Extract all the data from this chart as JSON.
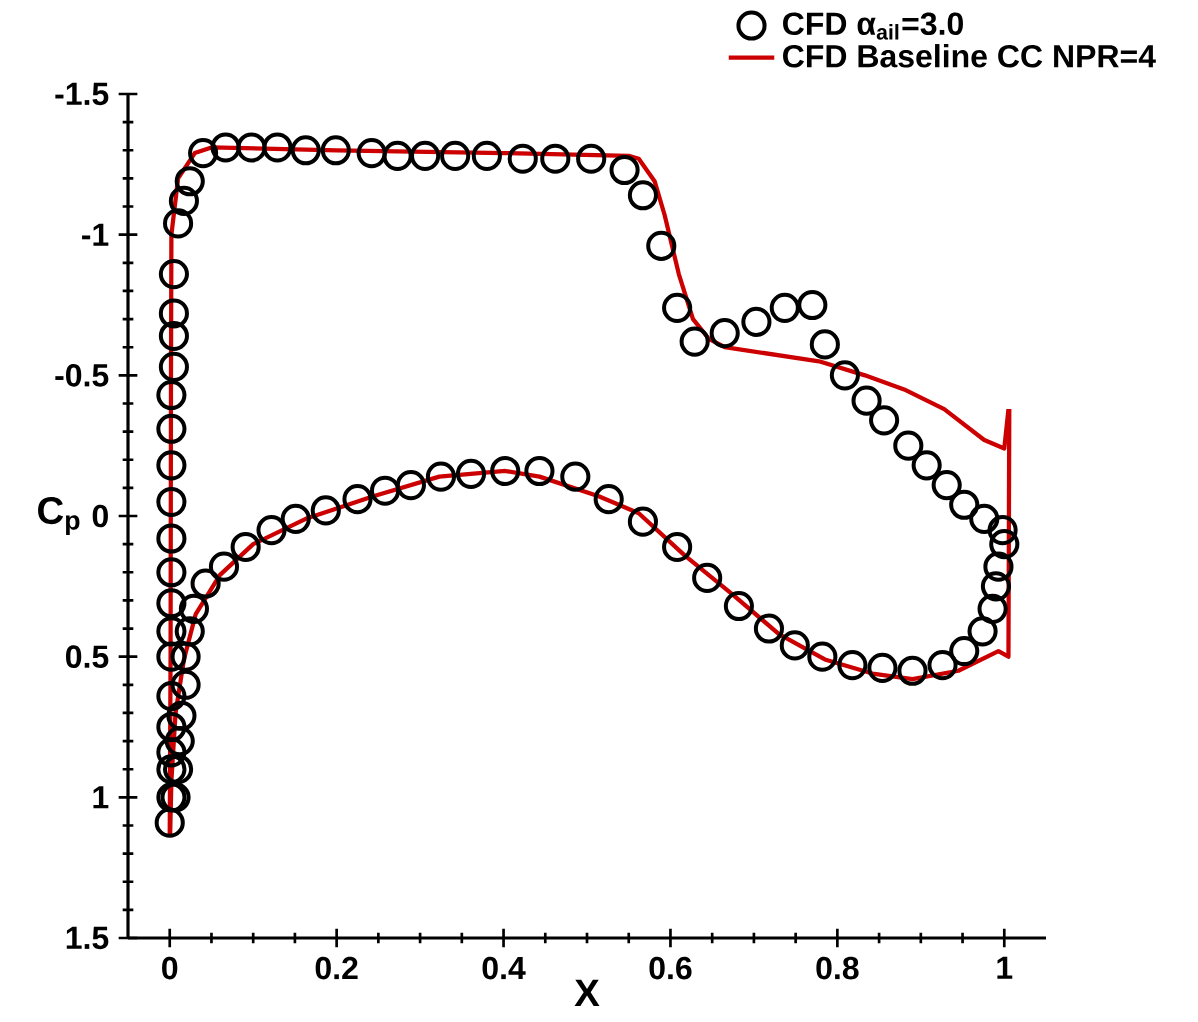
{
  "chart_data": {
    "type": "scatter",
    "xlabel": "X",
    "ylabel": "C$_{p}$",
    "xlim": [
      -0.05,
      1.05
    ],
    "ylim": [
      1.5,
      -1.5
    ],
    "xticks": [
      0,
      0.2,
      0.4,
      0.6,
      0.8,
      1
    ],
    "yticks": [
      -1.5,
      -1,
      -0.5,
      0,
      0.5,
      1,
      1.5
    ],
    "legend": "top right",
    "series": [
      {
        "name": "CFD α$_{ail}$=3.0",
        "marker": "circle",
        "color": "#000000",
        "x": [
          0.0,
          0.002,
          0.002,
          0.002,
          0.002,
          0.002,
          0.002,
          0.002,
          0.002,
          0.002,
          0.002,
          0.002,
          0.002,
          0.002,
          0.002,
          0.005,
          0.005,
          0.005,
          0.005,
          0.01,
          0.017,
          0.024,
          0.04,
          0.067,
          0.098,
          0.129,
          0.163,
          0.199,
          0.242,
          0.273,
          0.306,
          0.342,
          0.38,
          0.423,
          0.462,
          0.505,
          0.545,
          0.567,
          0.589,
          0.608,
          0.629,
          0.665,
          0.703,
          0.737,
          0.77,
          0.785,
          0.809,
          0.835,
          0.856,
          0.885,
          0.907,
          0.931,
          0.952,
          0.976,
          0.998,
          1.0,
          0.993,
          0.99,
          0.986,
          0.974,
          0.952,
          0.926,
          0.89,
          0.854,
          0.818,
          0.782,
          0.749,
          0.718,
          0.682,
          0.644,
          0.608,
          0.567,
          0.526,
          0.486,
          0.443,
          0.402,
          0.361,
          0.325,
          0.289,
          0.258,
          0.225,
          0.187,
          0.151,
          0.122,
          0.091,
          0.065,
          0.043,
          0.029,
          0.024,
          0.019,
          0.019,
          0.014,
          0.012,
          0.01,
          0.007
        ],
        "values": [
          1.09,
          1.0,
          0.9,
          0.84,
          0.75,
          0.64,
          0.5,
          0.41,
          0.31,
          0.2,
          0.08,
          -0.05,
          -0.18,
          -0.31,
          -0.43,
          -0.53,
          -0.64,
          -0.72,
          -0.86,
          -1.04,
          -1.12,
          -1.19,
          -1.29,
          -1.31,
          -1.31,
          -1.31,
          -1.3,
          -1.3,
          -1.29,
          -1.28,
          -1.28,
          -1.28,
          -1.28,
          -1.27,
          -1.27,
          -1.27,
          -1.23,
          -1.14,
          -0.96,
          -0.74,
          -0.62,
          -0.65,
          -0.69,
          -0.74,
          -0.75,
          -0.61,
          -0.5,
          -0.41,
          -0.34,
          -0.25,
          -0.18,
          -0.11,
          -0.04,
          0.01,
          0.05,
          0.1,
          0.18,
          0.25,
          0.33,
          0.41,
          0.48,
          0.53,
          0.55,
          0.54,
          0.53,
          0.5,
          0.46,
          0.4,
          0.32,
          0.22,
          0.11,
          0.02,
          -0.06,
          -0.14,
          -0.16,
          -0.16,
          -0.15,
          -0.14,
          -0.11,
          -0.09,
          -0.06,
          -0.02,
          0.01,
          0.05,
          0.11,
          0.18,
          0.24,
          0.33,
          0.41,
          0.5,
          0.6,
          0.71,
          0.8,
          0.9,
          1.0
        ]
      },
      {
        "name": "CFD Baseline CC NPR=4",
        "type": "line",
        "marker": "none",
        "color": "#cc0000",
        "x": [
          0,
          0.001,
          0.0015,
          0.002,
          0.01,
          0.03,
          0.05,
          0.2,
          0.4,
          0.55,
          0.562,
          0.581,
          0.593,
          0.61,
          0.627,
          0.646,
          0.665,
          0.778,
          0.833,
          0.88,
          0.928,
          0.976,
          1.0,
          1.005
        ],
        "values": [
          1.13,
          0.5,
          -0.5,
          -1.0,
          -1.2,
          -1.29,
          -1.31,
          -1.3,
          -1.29,
          -1.28,
          -1.27,
          -1.19,
          -1.07,
          -0.86,
          -0.7,
          -0.63,
          -0.6,
          -0.55,
          -0.5,
          -0.45,
          -0.38,
          -0.27,
          -0.24,
          -0.38
        ]
      },
      {
        "type": "line",
        "marker": "none",
        "color": "#cc0000",
        "x": [
          0.0005,
          0.002,
          0.007,
          0.017,
          0.031,
          0.06,
          0.1,
          0.163,
          0.244,
          0.323,
          0.402,
          0.443,
          0.514,
          0.562,
          0.617,
          0.675,
          0.73,
          0.785,
          0.842,
          0.89,
          0.945,
          0.993,
          1.005,
          1.006
        ],
        "values": [
          1.13,
          0.94,
          0.7,
          0.51,
          0.35,
          0.21,
          0.1,
          0.01,
          -0.07,
          -0.14,
          -0.16,
          -0.14,
          -0.07,
          -0.01,
          0.14,
          0.28,
          0.42,
          0.51,
          0.56,
          0.58,
          0.55,
          0.48,
          0.5,
          -0.38
        ]
      }
    ]
  }
}
